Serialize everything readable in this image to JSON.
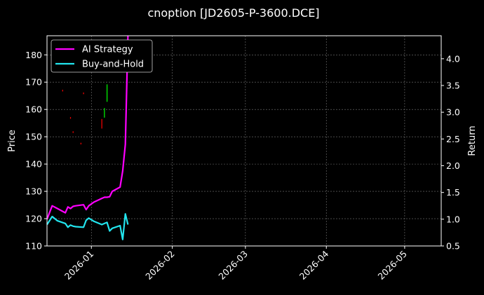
{
  "chart_data": {
    "type": "line",
    "title": "cnoption [JD2605-P-3600.DCE]",
    "xlabel": "",
    "ylabel": "Price",
    "y2label": "Return",
    "background": "#000000",
    "grid": true,
    "legend_position": "top-left",
    "xlim": [
      "2025-12-15",
      "2026-05-15"
    ],
    "ylim": [
      110,
      187
    ],
    "y2lim": [
      0.5,
      4.43
    ],
    "x_ticks": [
      "2026-01-01",
      "2026-02-01",
      "2026-03-01",
      "2026-04-01",
      "2026-05-01"
    ],
    "x_tick_labels": [
      "2026-01",
      "2026-02",
      "2026-03",
      "2026-04",
      "2026-05"
    ],
    "y_ticks": [
      110,
      120,
      130,
      140,
      150,
      160,
      170,
      180
    ],
    "y2_ticks": [
      0.5,
      1.0,
      1.5,
      2.0,
      2.5,
      3.0,
      3.5,
      4.0
    ],
    "series": [
      {
        "name": "AI Strategy",
        "axis": "right",
        "color": "#ff00ff",
        "x": [
          "2025-12-15",
          "2025-12-17",
          "2025-12-19",
          "2025-12-22",
          "2025-12-23",
          "2025-12-24",
          "2025-12-25",
          "2025-12-26",
          "2025-12-29",
          "2025-12-30",
          "2025-12-31",
          "2026-01-02",
          "2026-01-05",
          "2026-01-06",
          "2026-01-07",
          "2026-01-08",
          "2026-01-09",
          "2026-01-12",
          "2026-01-13",
          "2026-01-14",
          "2026-01-15"
        ],
        "values": [
          1.0,
          1.25,
          1.2,
          1.12,
          1.23,
          1.2,
          1.24,
          1.25,
          1.27,
          1.18,
          1.25,
          1.32,
          1.39,
          1.41,
          1.41,
          1.42,
          1.52,
          1.6,
          1.9,
          2.4,
          4.43
        ]
      },
      {
        "name": "Buy-and-Hold",
        "axis": "right",
        "color": "#22e5ee",
        "x": [
          "2025-12-15",
          "2025-12-17",
          "2025-12-19",
          "2025-12-22",
          "2025-12-23",
          "2025-12-24",
          "2025-12-25",
          "2025-12-26",
          "2025-12-29",
          "2025-12-30",
          "2025-12-31",
          "2026-01-02",
          "2026-01-05",
          "2026-01-06",
          "2026-01-07",
          "2026-01-08",
          "2026-01-09",
          "2026-01-12",
          "2026-01-13",
          "2026-01-14",
          "2026-01-15"
        ],
        "values": [
          0.9,
          1.05,
          0.97,
          0.92,
          0.85,
          0.89,
          0.87,
          0.86,
          0.85,
          0.98,
          1.02,
          0.96,
          0.9,
          0.92,
          0.94,
          0.78,
          0.83,
          0.88,
          0.62,
          1.1,
          0.9
        ]
      }
    ],
    "candles": {
      "axis": "left",
      "up_color": "#00ff00",
      "down_color": "#ff0000",
      "items": [
        {
          "x": "2025-12-21",
          "low": 166.6,
          "high": 167.2,
          "dir": "down"
        },
        {
          "x": "2025-12-24",
          "low": 156.6,
          "high": 157.2,
          "dir": "down"
        },
        {
          "x": "2025-12-25",
          "low": 151.4,
          "high": 152.0,
          "dir": "down"
        },
        {
          "x": "2025-12-28",
          "low": 147.2,
          "high": 147.8,
          "dir": "down"
        },
        {
          "x": "2025-12-29",
          "low": 165.6,
          "high": 166.2,
          "dir": "down"
        },
        {
          "x": "2026-01-05",
          "low": 153.0,
          "high": 156.5,
          "dir": "down"
        },
        {
          "x": "2026-01-06",
          "low": 157.0,
          "high": 160.5,
          "dir": "up"
        },
        {
          "x": "2026-01-07",
          "low": 162.8,
          "high": 169.2,
          "dir": "up"
        }
      ]
    }
  }
}
